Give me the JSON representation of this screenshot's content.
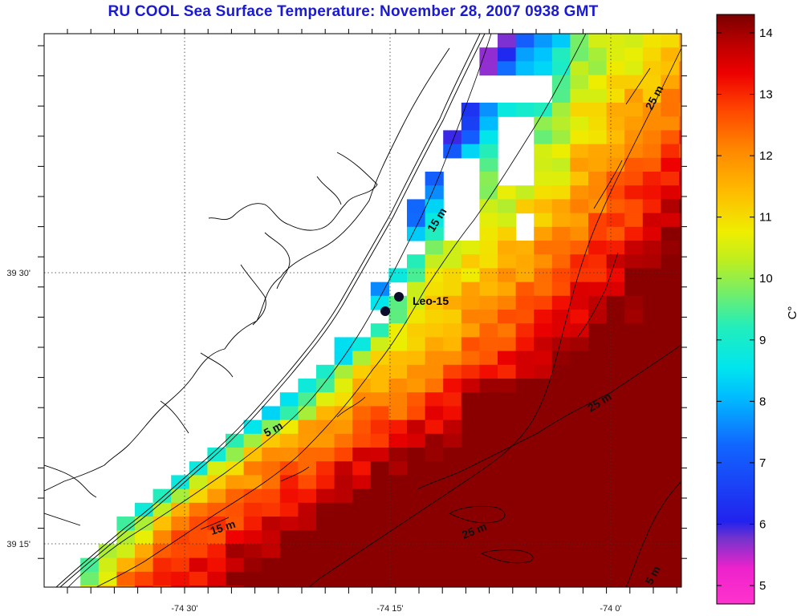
{
  "title": "RU COOL  Sea Surface Temperature:  November 28, 2007 0938 GMT",
  "axes": {
    "x_ticks": [
      "-74 30'",
      "-74 15'",
      "-74 0'"
    ],
    "y_ticks": [
      "39 30'",
      "39 15'"
    ]
  },
  "colorbar": {
    "unit": "C°",
    "ticks": [
      "5",
      "6",
      "7",
      "8",
      "9",
      "10",
      "11",
      "12",
      "13",
      "14"
    ],
    "range": [
      4.7,
      14.3
    ]
  },
  "contour_labels": [
    "15 m",
    "25 m",
    "5 m",
    "15 m",
    "25 m",
    "25 m",
    "5 m"
  ],
  "station": {
    "label": "Leo-15"
  },
  "colors": {
    "title": "#1a1ad0",
    "land": "#ffffff",
    "coast": "#000000"
  }
}
